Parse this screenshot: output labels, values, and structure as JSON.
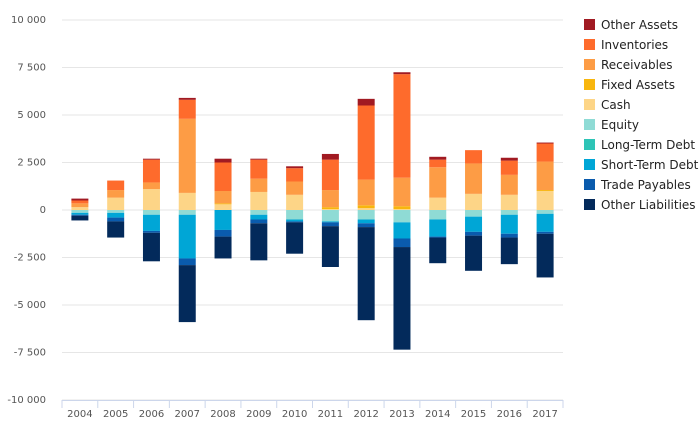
{
  "chart_data": {
    "type": "bar",
    "stacked": true,
    "categories": [
      "2004",
      "2005",
      "2006",
      "2007",
      "2008",
      "2009",
      "2010",
      "2011",
      "2012",
      "2013",
      "2014",
      "2015",
      "2016",
      "2017"
    ],
    "ylim": [
      -10000,
      10000
    ],
    "yticks": [
      10000,
      7500,
      5000,
      2500,
      0,
      -2500,
      -5000,
      -7500,
      -10000
    ],
    "ytick_labels": [
      "10 000",
      "7 500",
      "5 000",
      "2 500",
      "0",
      "-2 500",
      "-5 000",
      "-7 500",
      "-10 000"
    ],
    "grid": true,
    "legend_position": "right",
    "series": [
      {
        "name": "Other Assets",
        "color": "#a11a22",
        "values": [
          100,
          0,
          50,
          100,
          200,
          50,
          100,
          300,
          350,
          100,
          150,
          0,
          150,
          50
        ]
      },
      {
        "name": "Inventories",
        "color": "#fe6b2c",
        "values": [
          150,
          500,
          1200,
          1000,
          1500,
          1000,
          700,
          1600,
          3900,
          5450,
          400,
          700,
          750,
          950
        ]
      },
      {
        "name": "Receivables",
        "color": "#fd9c45",
        "values": [
          200,
          400,
          350,
          3900,
          650,
          700,
          700,
          900,
          1350,
          1500,
          1600,
          1600,
          1050,
          1500
        ]
      },
      {
        "name": "Fixed Assets",
        "color": "#f8b60e",
        "values": [
          0,
          0,
          0,
          0,
          50,
          0,
          0,
          100,
          150,
          150,
          0,
          0,
          0,
          50
        ]
      },
      {
        "name": "Cash",
        "color": "#fdd587",
        "values": [
          150,
          650,
          1100,
          900,
          300,
          950,
          800,
          50,
          100,
          50,
          650,
          850,
          800,
          1000
        ]
      },
      {
        "name": "Equity",
        "color": "#8fdbd5",
        "values": [
          -150,
          -150,
          -250,
          -250,
          0,
          -250,
          -500,
          -600,
          -500,
          -650,
          -500,
          -350,
          -250,
          -200
        ]
      },
      {
        "name": "Long-Term Debt",
        "color": "#2ec4b6",
        "values": [
          0,
          0,
          0,
          0,
          0,
          0,
          0,
          0,
          0,
          0,
          0,
          0,
          0,
          0
        ]
      },
      {
        "name": "Short-Term Debt",
        "color": "#00a6d6",
        "values": [
          -100,
          -250,
          -850,
          -2300,
          -1050,
          -250,
          -100,
          -50,
          -200,
          -850,
          -900,
          -800,
          -1000,
          -950
        ]
      },
      {
        "name": "Trade Payables",
        "color": "#0a5bad",
        "values": [
          -50,
          -200,
          -100,
          -350,
          -350,
          -200,
          -50,
          -200,
          -200,
          -450,
          -50,
          -200,
          -200,
          -100
        ]
      },
      {
        "name": "Other Liabilities",
        "color": "#032a5b",
        "values": [
          -250,
          -850,
          -1500,
          -3000,
          -1150,
          -1950,
          -1650,
          -2150,
          -4900,
          -5400,
          -1350,
          -1850,
          -1400,
          -2300
        ]
      }
    ]
  }
}
